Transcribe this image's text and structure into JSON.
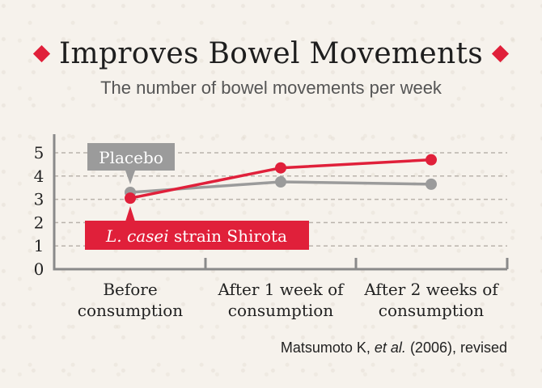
{
  "header": {
    "title": "Improves Bowel Movements",
    "subtitle": "The number of bowel movements per week"
  },
  "footer": {
    "source_prefix": "Matsumoto K, ",
    "source_italic": "et al.",
    "source_suffix": " (2006), revised"
  },
  "colors": {
    "accent": "#e0203a",
    "placebo": "#9b9b9b",
    "text": "#222222"
  },
  "icons": [
    "diamond-icon"
  ],
  "chart_data": {
    "type": "line",
    "title": "Improves Bowel Movements",
    "subtitle": "The number of bowel movements per week",
    "xlabel": "",
    "ylabel": "",
    "categories": [
      "Before consumption",
      "After 1 week of consumption",
      "After 2 weeks of consumption"
    ],
    "category_lines": [
      [
        "Before",
        "consumption"
      ],
      [
        "After 1 week of",
        "consumption"
      ],
      [
        "After 2 weeks of",
        "consumption"
      ]
    ],
    "yticks": [
      0,
      1,
      2,
      3,
      4,
      5
    ],
    "ylim": [
      0,
      5.5
    ],
    "grid": true,
    "series": [
      {
        "name": "Placebo",
        "values": [
          3.3,
          3.75,
          3.65
        ],
        "color": "#9b9b9b"
      },
      {
        "name": "L. casei strain Shirota",
        "name_italic": "L. casei",
        "name_rest": " strain Shirota",
        "values": [
          3.05,
          4.35,
          4.7
        ],
        "color": "#e0203a"
      }
    ]
  }
}
